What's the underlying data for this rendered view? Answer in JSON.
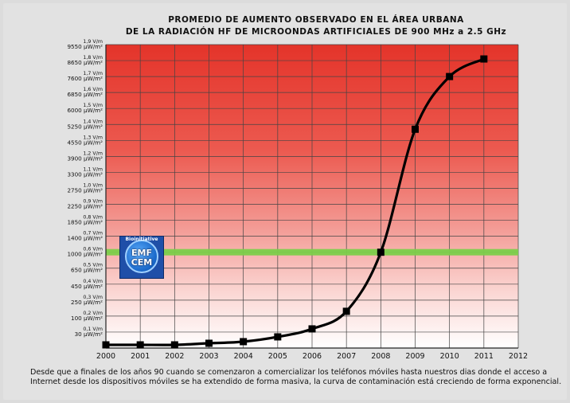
{
  "title_line1": "PROMEDIO DE AUMENTO OBSERVADO EN EL ÁREA URBANA",
  "title_line2": "DE LA RADIACIÓN HF DE MICROONDAS ARTIFICIALES DE 900 MHz a 2.5 GHz",
  "caption": "Desde que a finales de los años 90 cuando se comenzaron a comercializar los teléfonos móviles hasta nuestros dias donde el acceso a Internet desde los dispositivos móviles se ha extendido de forma masiva, la curva de contaminación está creciendo de forma exponencial.",
  "logo": {
    "line1": "EMF",
    "line2": "CEM",
    "arc_text": "Bioinitiative"
  },
  "colors": {
    "curve": "#000000",
    "marker": "#000000",
    "threshold": "#7ccf4a",
    "gradient_top": "#e8352b",
    "gradient_bottom": "#ffffff",
    "grid": "#444444"
  },
  "chart_data": {
    "type": "line",
    "title": "PROMEDIO DE AUMENTO OBSERVADO EN EL ÁREA URBANA DE LA RADIACIÓN HF DE MICROONDAS ARTIFICIALES DE 900 MHz a 2.5 GHz",
    "x_ticks": [
      "2000",
      "2001",
      "2002",
      "2003",
      "2004",
      "2005",
      "2006",
      "2007",
      "2008",
      "2009",
      "2010",
      "2011",
      "2012"
    ],
    "xlim": [
      2000,
      2012
    ],
    "ylim": [
      0,
      1.9
    ],
    "y_ticks": [
      {
        "v": 0.1,
        "top": "0,1 V/m",
        "bottom": "30 µW/m²"
      },
      {
        "v": 0.2,
        "top": "0,2 V/m",
        "bottom": "100 µW/m²"
      },
      {
        "v": 0.3,
        "top": "0,3 V/m",
        "bottom": "250 µW/m²"
      },
      {
        "v": 0.4,
        "top": "0,4 V/m",
        "bottom": "450 µW/m²"
      },
      {
        "v": 0.5,
        "top": "0,5 V/m",
        "bottom": "650 µW/m²"
      },
      {
        "v": 0.6,
        "top": "0,6 V/m",
        "bottom": "1000 µW/m²"
      },
      {
        "v": 0.7,
        "top": "0,7 V/m",
        "bottom": "1400 µW/m²"
      },
      {
        "v": 0.8,
        "top": "0,8 V/m",
        "bottom": "1850 µW/m²"
      },
      {
        "v": 0.9,
        "top": "0,9 V/m",
        "bottom": "2250 µW/m²"
      },
      {
        "v": 1.0,
        "top": "1,0 V/m",
        "bottom": "2750 µW/m²"
      },
      {
        "v": 1.1,
        "top": "1,1 V/m",
        "bottom": "3300 µW/m²"
      },
      {
        "v": 1.2,
        "top": "1,2 V/m",
        "bottom": "3900 µW/m²"
      },
      {
        "v": 1.3,
        "top": "1,3 V/m",
        "bottom": "4550 µW/m²"
      },
      {
        "v": 1.4,
        "top": "1,4 V/m",
        "bottom": "5250 µW/m²"
      },
      {
        "v": 1.5,
        "top": "1,5 V/m",
        "bottom": "6000 µW/m²"
      },
      {
        "v": 1.6,
        "top": "1,6 V/m",
        "bottom": "6850 µW/m²"
      },
      {
        "v": 1.7,
        "top": "1,7 V/m",
        "bottom": "7600 µW/m²"
      },
      {
        "v": 1.8,
        "top": "1,8 V/m",
        "bottom": "8650 µW/m²"
      },
      {
        "v": 1.9,
        "top": "1,9 V/m",
        "bottom": "9550 µW/m²"
      }
    ],
    "threshold_value": 0.6,
    "series": [
      {
        "x": [
          2000,
          2001,
          2002,
          2003,
          2004,
          2005,
          2006,
          2007,
          2008,
          2009,
          2010,
          2011
        ],
        "y": [
          0.02,
          0.02,
          0.02,
          0.03,
          0.04,
          0.07,
          0.12,
          0.23,
          0.6,
          1.37,
          1.7,
          1.81
        ]
      }
    ],
    "grid": true,
    "legend": "none"
  }
}
